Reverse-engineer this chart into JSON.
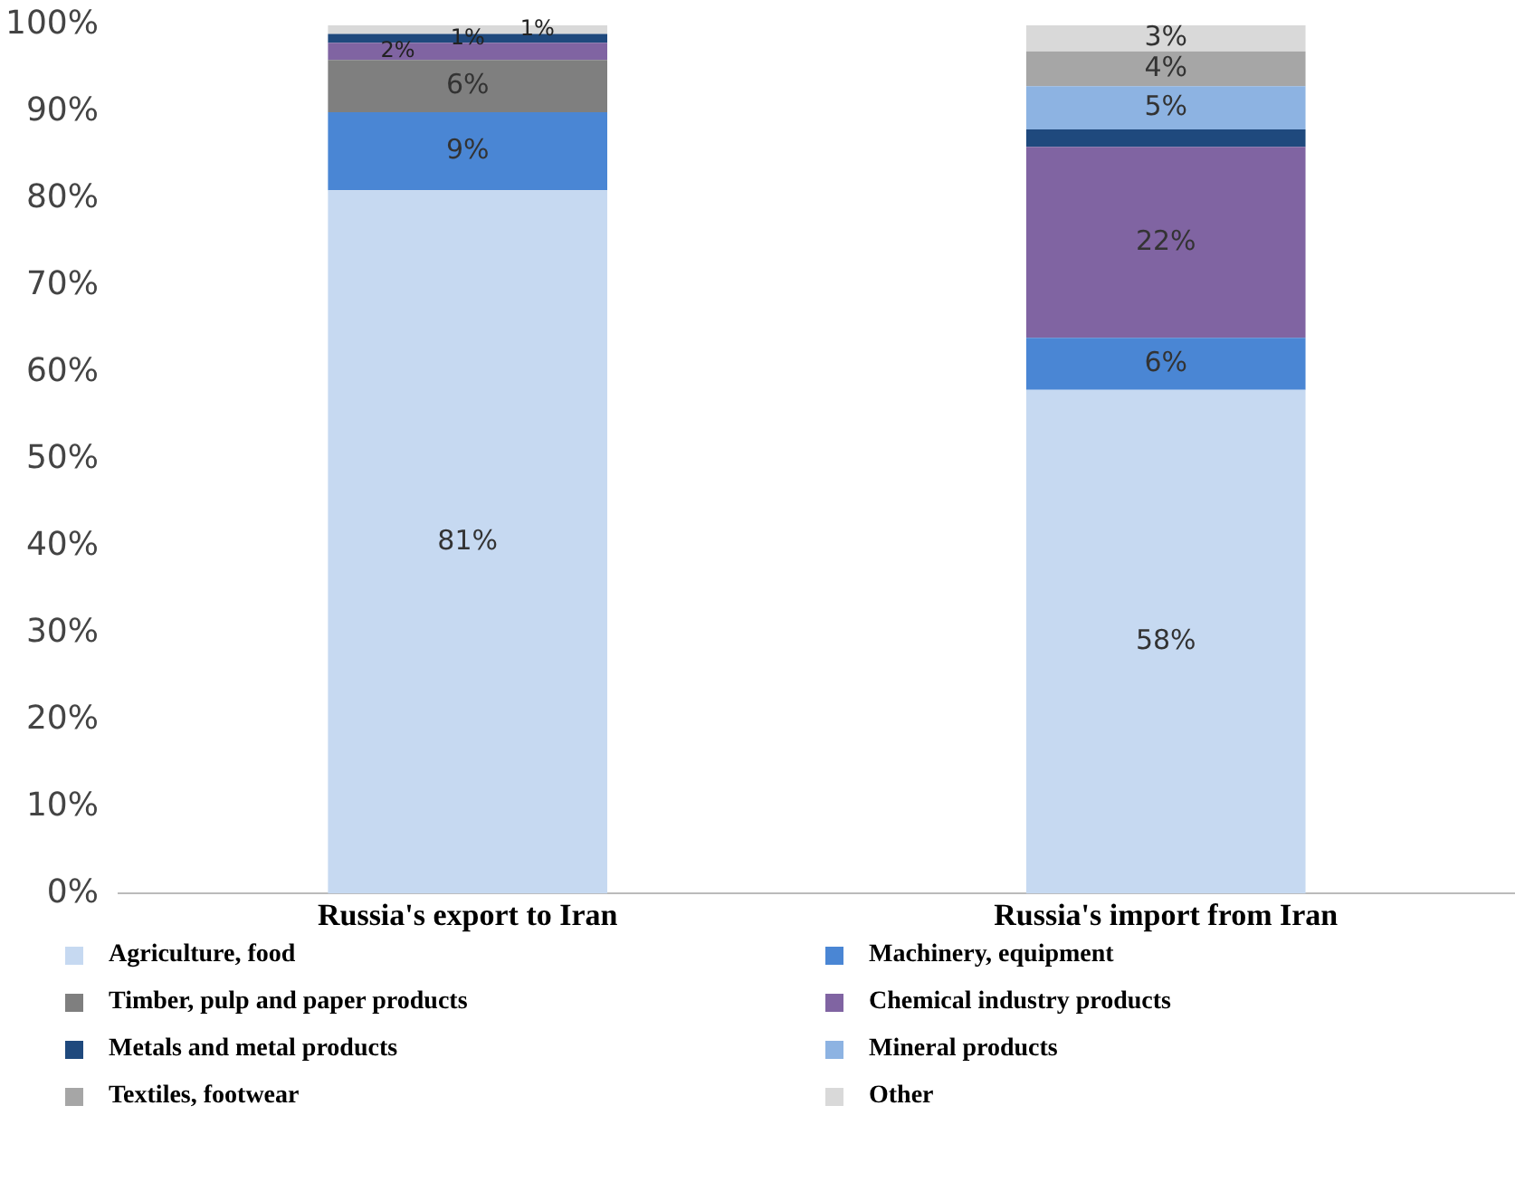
{
  "chart_data": {
    "type": "bar",
    "stacked": true,
    "categories": [
      "Russia's export to Iran",
      "Russia's import from Iran"
    ],
    "ylim": [
      0,
      100
    ],
    "yticks": [
      {
        "value": 0,
        "label": "0%"
      },
      {
        "value": 10,
        "label": "10%"
      },
      {
        "value": 20,
        "label": "20%"
      },
      {
        "value": 30,
        "label": "30%"
      },
      {
        "value": 40,
        "label": "40%"
      },
      {
        "value": 50,
        "label": "50%"
      },
      {
        "value": 60,
        "label": "60%"
      },
      {
        "value": 70,
        "label": "70%"
      },
      {
        "value": 80,
        "label": "80%"
      },
      {
        "value": 90,
        "label": "90%"
      },
      {
        "value": 100,
        "label": "100%"
      }
    ],
    "grid": false,
    "legend": "bottom",
    "series": [
      {
        "name": "Agriculture, food",
        "color": "#c6d9f1",
        "values": [
          81,
          58
        ],
        "value_labels": [
          "81%",
          "58%"
        ]
      },
      {
        "name": "Machinery, equipment",
        "color": "#4a86d4",
        "values": [
          9,
          6
        ],
        "value_labels": [
          "9%",
          "6%"
        ]
      },
      {
        "name": "Timber, pulp and paper products",
        "color": "#7f7f7f",
        "values": [
          6,
          0
        ],
        "value_labels": [
          "6%",
          null
        ]
      },
      {
        "name": "Chemical industry products",
        "color": "#8064a2",
        "values": [
          2,
          22
        ],
        "value_labels": [
          "2%",
          "22%"
        ]
      },
      {
        "name": "Metals and metal products",
        "color": "#1f497d",
        "values": [
          1,
          2
        ],
        "value_labels": [
          "1%",
          null
        ]
      },
      {
        "name": "Mineral products",
        "color": "#8db3e2",
        "values": [
          0,
          5
        ],
        "value_labels": [
          null,
          "5%"
        ]
      },
      {
        "name": "Textiles, footwear",
        "color": "#a6a6a6",
        "values": [
          0,
          4
        ],
        "value_labels": [
          null,
          "4%"
        ]
      },
      {
        "name": "Other",
        "color": "#d9d9d9",
        "values": [
          1,
          3
        ],
        "value_labels": [
          "1%",
          "3%"
        ]
      }
    ]
  }
}
